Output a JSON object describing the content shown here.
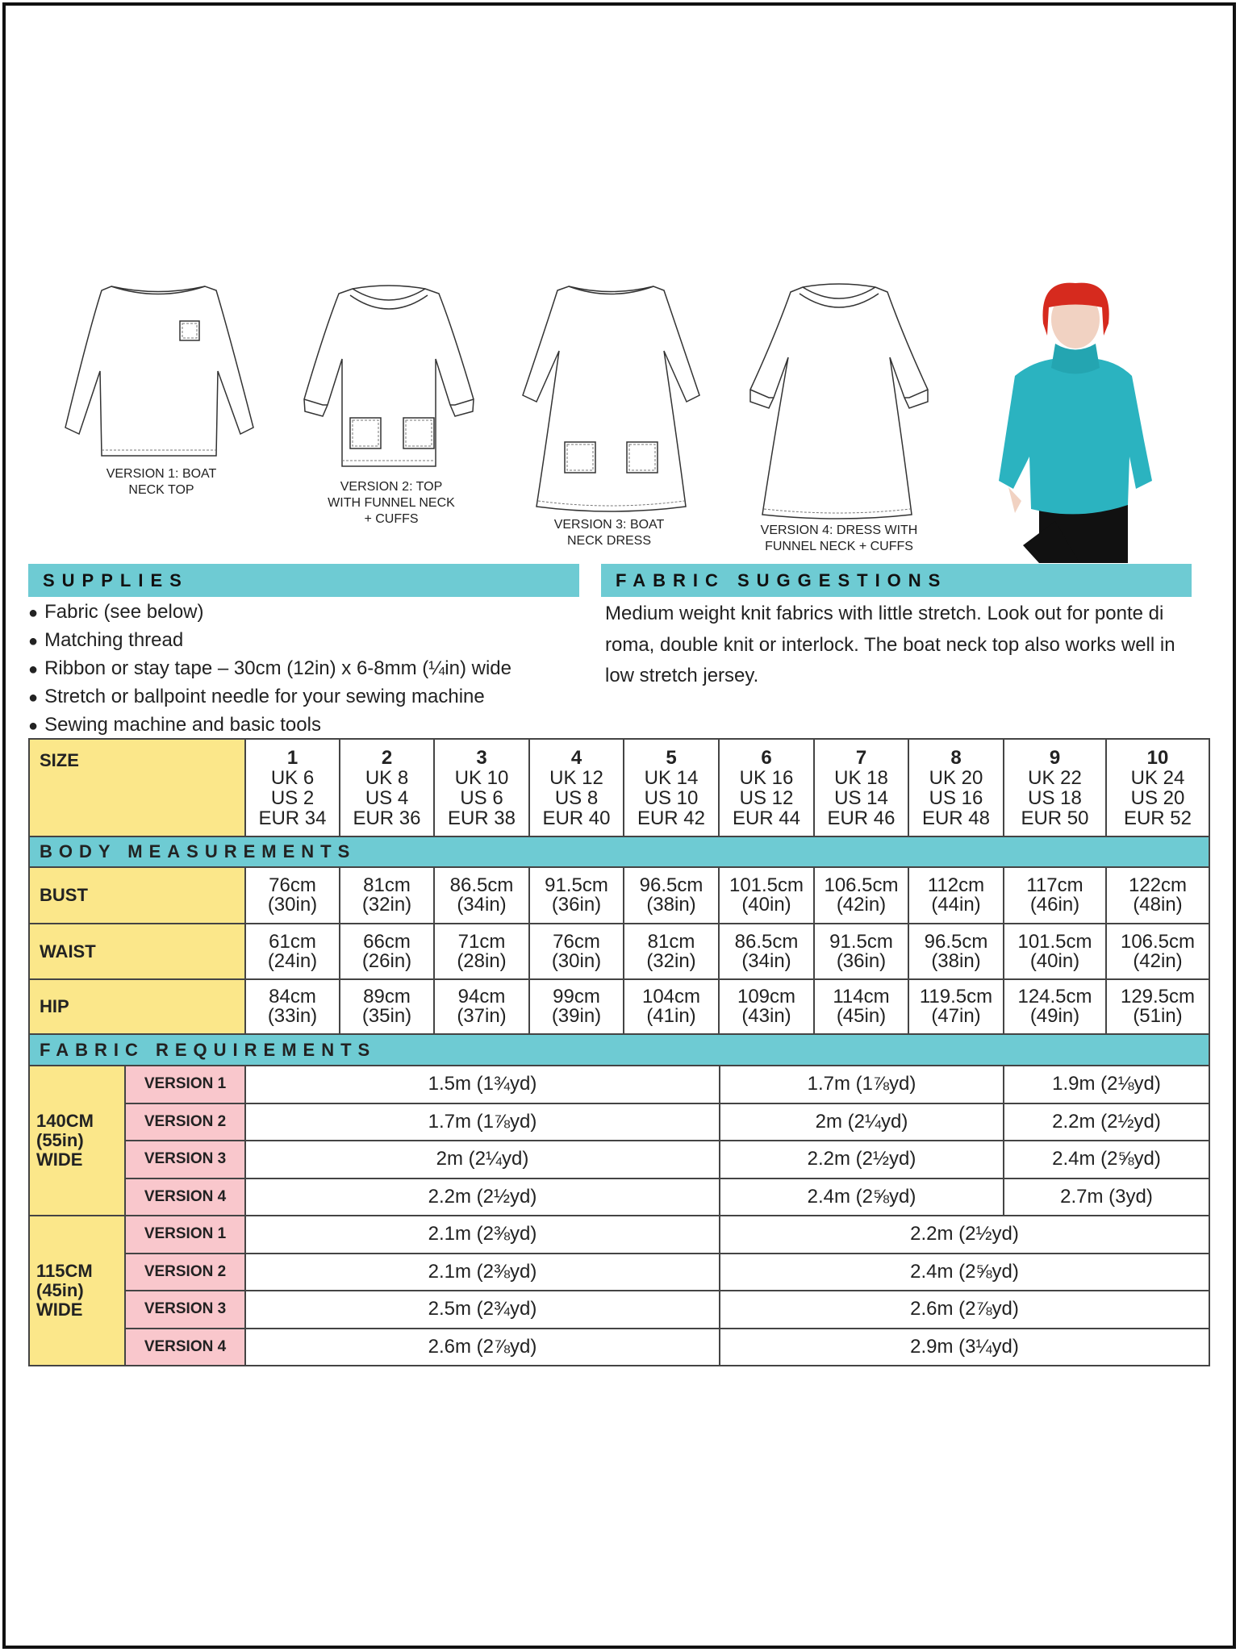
{
  "illustrations": [
    {
      "caption_lines": [
        "VERSION 1: BOAT",
        "NECK TOP"
      ]
    },
    {
      "caption_lines": [
        "VERSION 2: TOP",
        "WITH FUNNEL NECK",
        "+ CUFFS"
      ]
    },
    {
      "caption_lines": [
        "VERSION 3: BOAT",
        "NECK DRESS"
      ]
    },
    {
      "caption_lines": [
        "VERSION 4: DRESS WITH",
        "FUNNEL NECK + CUFFS"
      ]
    }
  ],
  "colors": {
    "section_bar": "#6ecbd3",
    "label_cell": "#fbe78a",
    "version_cell": "#f9c7cc",
    "garment_photo": "#2bb3c0"
  },
  "supplies": {
    "title": "SUPPLIES",
    "items": [
      "Fabric (see below)",
      "Matching thread",
      "Ribbon or stay tape – 30cm (12in) x 6-8mm (¼in) wide",
      "Stretch or ballpoint needle for your sewing machine",
      "Sewing machine and basic tools"
    ]
  },
  "fabric_suggestions": {
    "title": "FABRIC SUGGESTIONS",
    "text": "Medium weight knit fabrics with little stretch. Look out for ponte di roma, double knit or interlock. The boat neck top also works well in low stretch jersey."
  },
  "size_table": {
    "size_label": "SIZE",
    "sizes": [
      {
        "n": "1",
        "uk": "UK 6",
        "us": "US 2",
        "eur": "EUR 34"
      },
      {
        "n": "2",
        "uk": "UK 8",
        "us": "US 4",
        "eur": "EUR 36"
      },
      {
        "n": "3",
        "uk": "UK 10",
        "us": "US 6",
        "eur": "EUR 38"
      },
      {
        "n": "4",
        "uk": "UK 12",
        "us": "US 8",
        "eur": "EUR 40"
      },
      {
        "n": "5",
        "uk": "UK 14",
        "us": "US 10",
        "eur": "EUR 42"
      },
      {
        "n": "6",
        "uk": "UK 16",
        "us": "US 12",
        "eur": "EUR 44"
      },
      {
        "n": "7",
        "uk": "UK 18",
        "us": "US 14",
        "eur": "EUR 46"
      },
      {
        "n": "8",
        "uk": "UK 20",
        "us": "US 16",
        "eur": "EUR 48"
      },
      {
        "n": "9",
        "uk": "UK 22",
        "us": "US 18",
        "eur": "EUR 50"
      },
      {
        "n": "10",
        "uk": "UK 24",
        "us": "US 20",
        "eur": "EUR 52"
      }
    ],
    "body_title": "BODY MEASUREMENTS",
    "body_rows": [
      {
        "label": "BUST",
        "cm": [
          "76cm",
          "81cm",
          "86.5cm",
          "91.5cm",
          "96.5cm",
          "101.5cm",
          "106.5cm",
          "112cm",
          "117cm",
          "122cm"
        ],
        "in": [
          "(30in)",
          "(32in)",
          "(34in)",
          "(36in)",
          "(38in)",
          "(40in)",
          "(42in)",
          "(44in)",
          "(46in)",
          "(48in)"
        ]
      },
      {
        "label": "WAIST",
        "cm": [
          "61cm",
          "66cm",
          "71cm",
          "76cm",
          "81cm",
          "86.5cm",
          "91.5cm",
          "96.5cm",
          "101.5cm",
          "106.5cm"
        ],
        "in": [
          "(24in)",
          "(26in)",
          "(28in)",
          "(30in)",
          "(32in)",
          "(34in)",
          "(36in)",
          "(38in)",
          "(40in)",
          "(42in)"
        ]
      },
      {
        "label": "HIP",
        "cm": [
          "84cm",
          "89cm",
          "94cm",
          "99cm",
          "104cm",
          "109cm",
          "114cm",
          "119.5cm",
          "124.5cm",
          "129.5cm"
        ],
        "in": [
          "(33in)",
          "(35in)",
          "(37in)",
          "(39in)",
          "(41in)",
          "(43in)",
          "(45in)",
          "(47in)",
          "(49in)",
          "(51in)"
        ]
      }
    ],
    "fabric_title": "FABRIC REQUIREMENTS",
    "fabric_groups": [
      {
        "width": [
          "140CM",
          "(55in)",
          "WIDE"
        ],
        "size_groups": [
          "1-5",
          "6-8",
          "9-10"
        ],
        "rows": [
          {
            "version": "VERSION 1",
            "values": [
              "1.5m (1¾yd)",
              "1.7m (1⅞yd)",
              "1.9m (2⅛yd)"
            ]
          },
          {
            "version": "VERSION 2",
            "values": [
              "1.7m (1⅞yd)",
              "2m (2¼yd)",
              "2.2m (2½yd)"
            ]
          },
          {
            "version": "VERSION 3",
            "values": [
              "2m (2¼yd)",
              "2.2m (2½yd)",
              "2.4m (2⅝yd)"
            ]
          },
          {
            "version": "VERSION 4",
            "values": [
              "2.2m (2½yd)",
              "2.4m (2⅝yd)",
              "2.7m (3yd)"
            ]
          }
        ]
      },
      {
        "width": [
          "115CM",
          "(45in)",
          "WIDE"
        ],
        "size_groups": [
          "1-5",
          "6-10"
        ],
        "rows": [
          {
            "version": "VERSION 1",
            "values": [
              "2.1m (2⅜yd)",
              "2.2m (2½yd)"
            ]
          },
          {
            "version": "VERSION 2",
            "values": [
              "2.1m (2⅜yd)",
              "2.4m (2⅝yd)"
            ]
          },
          {
            "version": "VERSION 3",
            "values": [
              "2.5m (2¾yd)",
              "2.6m (2⅞yd)"
            ]
          },
          {
            "version": "VERSION 4",
            "values": [
              "2.6m (2⅞yd)",
              "2.9m (3¼yd)"
            ]
          }
        ]
      }
    ]
  }
}
